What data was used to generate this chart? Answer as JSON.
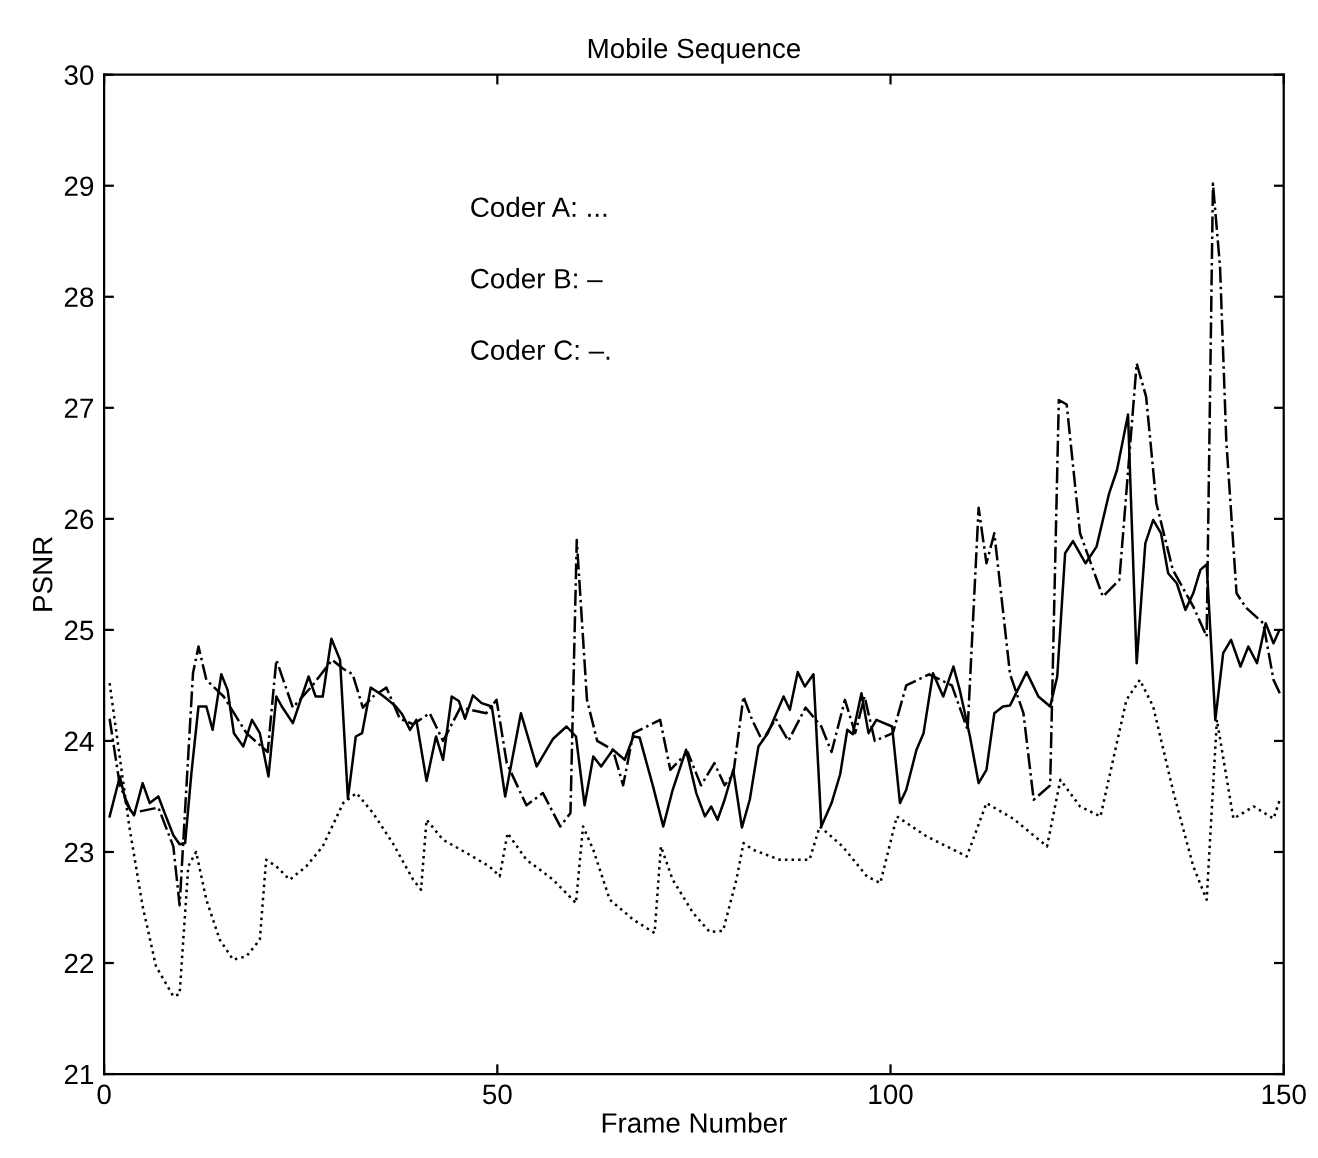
{
  "chart_data": {
    "type": "line",
    "title": "Mobile Sequence",
    "xlabel": "Frame Number",
    "ylabel": "PSNR",
    "annotations": [
      "Coder A: ...",
      "Coder B: –",
      "Coder C: –."
    ],
    "xlim": [
      0,
      150
    ],
    "xticks": [
      0,
      50,
      100,
      150
    ],
    "ylim": [
      21,
      30
    ],
    "yticks": [
      21,
      22,
      23,
      24,
      25,
      26,
      27,
      28,
      29,
      30
    ],
    "grid": false,
    "marker": "none",
    "series": [
      {
        "color": "#000000",
        "line_style": "dotted",
        "x": [
          0.7,
          3.2,
          4.9,
          6.6,
          8.8,
          9.6,
          10.7,
          11.7,
          13,
          14.7,
          16.4,
          18.1,
          19.8,
          20.6,
          21.9,
          23.6,
          25.7,
          27.8,
          30.4,
          32.1,
          34.2,
          36.7,
          39.3,
          40.3,
          41,
          43.1,
          46.1,
          49,
          50.3,
          51.3,
          53.7,
          57.1,
          60,
          60.9,
          62.2,
          64.3,
          67.3,
          70,
          70.8,
          72.3,
          74.9,
          77,
          78.7,
          80.4,
          81.3,
          82.5,
          85.9,
          89.7,
          91,
          93.9,
          97,
          98.7,
          100.8,
          104.6,
          109.7,
          112.2,
          115.6,
          119.9,
          121.6,
          124.1,
          126.7,
          130,
          131.7,
          133.4,
          136,
          138.5,
          140.2,
          141.5,
          143.6,
          146.2,
          148.7,
          149.5
        ],
        "values": [
          24.52,
          23.23,
          22.51,
          21.97,
          21.7,
          21.72,
          22.87,
          23.0,
          22.57,
          22.21,
          22.03,
          22.06,
          22.21,
          22.93,
          22.87,
          22.75,
          22.87,
          23.05,
          23.44,
          23.53,
          23.35,
          23.08,
          22.75,
          22.66,
          23.29,
          23.11,
          22.99,
          22.87,
          22.78,
          23.17,
          22.93,
          22.75,
          22.54,
          23.23,
          23.02,
          22.57,
          22.39,
          22.27,
          23.05,
          22.75,
          22.45,
          22.28,
          22.29,
          22.75,
          23.08,
          23.02,
          22.93,
          22.93,
          23.23,
          23.05,
          22.78,
          22.72,
          23.32,
          23.14,
          22.96,
          23.44,
          23.3,
          23.05,
          23.65,
          23.41,
          23.32,
          24.37,
          24.55,
          24.31,
          23.53,
          22.87,
          22.57,
          24.19,
          23.3,
          23.41,
          23.3,
          23.47
        ]
      },
      {
        "color": "#000000",
        "line_style": "solid",
        "x": [
          0.7,
          2,
          2.8,
          3.8,
          4.9,
          5.8,
          6.9,
          7.7,
          8.8,
          9.6,
          10.3,
          11.1,
          12,
          13,
          13.8,
          14.9,
          15.7,
          16.5,
          17.7,
          18.8,
          19.8,
          20.9,
          21.9,
          22.6,
          24,
          26,
          26.9,
          27.8,
          28.9,
          30,
          31,
          32,
          32.8,
          33.9,
          35,
          36.1,
          37.1,
          37.9,
          38.9,
          39.7,
          41,
          42.2,
          43.1,
          44.2,
          45.1,
          45.9,
          46.9,
          48,
          49.3,
          51,
          53,
          55,
          57.1,
          58.8,
          60,
          61.1,
          62.2,
          63.2,
          64.7,
          66.2,
          67.3,
          68.1,
          69.8,
          71.1,
          72.3,
          74,
          75.3,
          76.4,
          77.2,
          78,
          78.9,
          80,
          81.1,
          82.1,
          83.2,
          84.4,
          86.4,
          87.2,
          88.2,
          89.1,
          90.2,
          91.2,
          92.5,
          93.6,
          94.5,
          95.2,
          96.3,
          97.2,
          98.2,
          100.2,
          101.2,
          102,
          103.3,
          104.2,
          105.4,
          106.7,
          108,
          108.8,
          110.1,
          111.2,
          112.2,
          113.2,
          114.3,
          115.2,
          117.3,
          118.8,
          120.3,
          121.2,
          122.2,
          123.2,
          124.8,
          126.2,
          127.8,
          128.8,
          130.2,
          131.3,
          132.4,
          133.4,
          134.4,
          135.3,
          136.4,
          137.5,
          138.5,
          139.4,
          140.2,
          141.3,
          142.3,
          143.3,
          144.5,
          145.5,
          146.6,
          147.7,
          148.7,
          149.4
        ],
        "values": [
          23.32,
          23.68,
          23.44,
          23.33,
          23.62,
          23.44,
          23.5,
          23.35,
          23.15,
          23.07,
          23.08,
          23.71,
          24.31,
          24.31,
          24.1,
          24.6,
          24.46,
          24.07,
          23.95,
          24.19,
          24.07,
          23.68,
          24.4,
          24.31,
          24.16,
          24.58,
          24.4,
          24.4,
          24.92,
          24.73,
          23.48,
          24.04,
          24.07,
          24.48,
          24.43,
          24.37,
          24.31,
          24.24,
          24.1,
          24.19,
          23.64,
          24.04,
          23.83,
          24.4,
          24.36,
          24.2,
          24.41,
          24.34,
          24.31,
          23.5,
          24.25,
          23.77,
          24.02,
          24.13,
          24.04,
          23.42,
          23.86,
          23.77,
          23.92,
          23.83,
          24.04,
          24.03,
          23.59,
          23.23,
          23.56,
          23.92,
          23.53,
          23.32,
          23.41,
          23.29,
          23.47,
          23.74,
          23.22,
          23.47,
          23.95,
          24.07,
          24.4,
          24.28,
          24.62,
          24.49,
          24.6,
          23.23,
          23.44,
          23.7,
          24.1,
          24.06,
          24.43,
          24.07,
          24.19,
          24.13,
          23.44,
          23.56,
          23.92,
          24.07,
          24.61,
          24.4,
          24.67,
          24.46,
          24.04,
          23.62,
          23.74,
          24.25,
          24.31,
          24.32,
          24.62,
          24.4,
          24.31,
          24.58,
          25.69,
          25.8,
          25.6,
          25.75,
          26.23,
          26.44,
          26.94,
          24.7,
          25.78,
          25.99,
          25.87,
          25.51,
          25.42,
          25.18,
          25.33,
          25.54,
          25.59,
          24.19,
          24.79,
          24.91,
          24.67,
          24.85,
          24.7,
          25.06,
          24.88,
          24.99
        ]
      },
      {
        "color": "#000000",
        "line_style": "dashdot",
        "x": [
          0.7,
          2,
          3.5,
          6.9,
          8.8,
          9.6,
          11.3,
          12,
          13,
          15.2,
          18.1,
          20.8,
          21.9,
          24,
          26.5,
          29,
          30.4,
          31.6,
          32.9,
          34.2,
          35.9,
          37.6,
          39.3,
          41.4,
          43.1,
          45.3,
          48.6,
          49.9,
          51.2,
          53.7,
          55.8,
          58,
          59.3,
          60.1,
          61.4,
          62.7,
          64.7,
          66,
          67.3,
          70.7,
          72,
          74.2,
          75.9,
          77.6,
          78.9,
          80,
          81.3,
          82.4,
          83.7,
          85.4,
          87,
          89.2,
          91.2,
          92.5,
          94.2,
          95.5,
          96.7,
          98,
          100.3,
          102,
          104.9,
          107.8,
          109.8,
          111.2,
          112.2,
          113.2,
          115.2,
          116.9,
          118.2,
          120.3,
          121.4,
          122.4,
          124.1,
          127,
          129.1,
          131.3,
          132.5,
          133.8,
          135.9,
          138.5,
          140.2,
          141,
          141.9,
          142.7,
          144,
          145.2,
          147.4,
          148.7,
          149.5
        ],
        "values": [
          24.2,
          23.6,
          23.35,
          23.4,
          23.05,
          22.52,
          24.61,
          24.85,
          24.55,
          24.4,
          24.07,
          23.9,
          24.73,
          24.3,
          24.5,
          24.73,
          24.65,
          24.6,
          24.3,
          24.4,
          24.48,
          24.2,
          24.15,
          24.25,
          24.0,
          24.3,
          24.25,
          24.37,
          23.8,
          23.42,
          23.53,
          23.23,
          23.35,
          25.81,
          24.37,
          24.0,
          23.92,
          23.6,
          24.07,
          24.19,
          23.74,
          23.9,
          23.6,
          23.8,
          23.6,
          23.7,
          24.4,
          24.19,
          24.0,
          24.2,
          24.0,
          24.3,
          24.13,
          23.9,
          24.37,
          24.07,
          24.4,
          24.0,
          24.07,
          24.5,
          24.6,
          24.5,
          24.1,
          26.1,
          25.6,
          25.87,
          24.6,
          24.25,
          23.47,
          23.6,
          27.07,
          27.03,
          25.87,
          25.3,
          25.45,
          27.4,
          27.1,
          26.14,
          25.54,
          25.21,
          24.94,
          29.02,
          28.27,
          26.7,
          25.33,
          25.2,
          25.06,
          24.55,
          24.43
        ]
      }
    ]
  }
}
